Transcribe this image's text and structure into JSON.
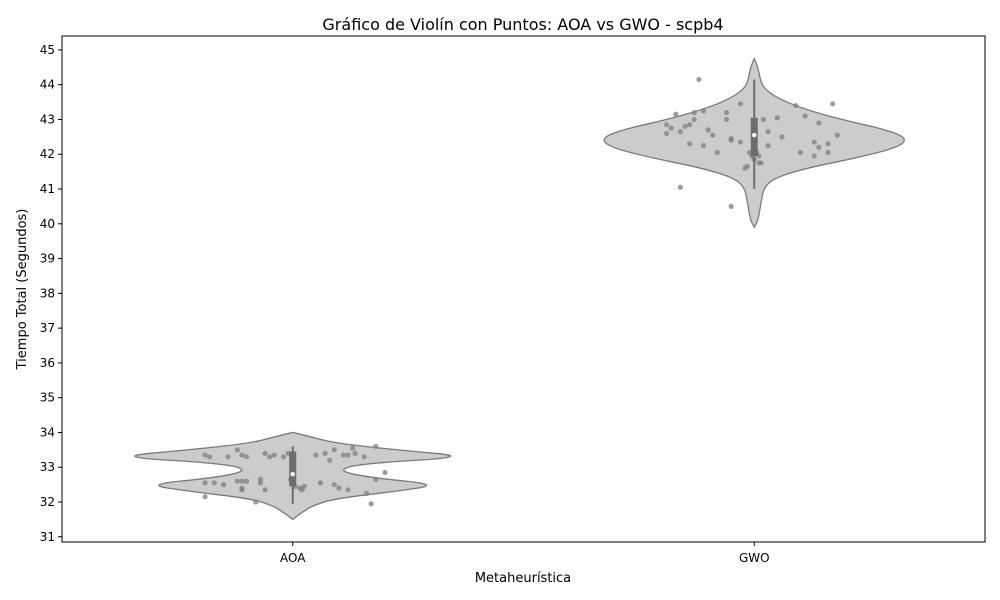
{
  "chart_data": {
    "type": "violin",
    "title": "Gráfico de Violín con Puntos: AOA vs GWO - scpb4",
    "xlabel": "Metaheurística",
    "ylabel": "Tiempo Total (Segundos)",
    "categories": [
      "AOA",
      "GWO"
    ],
    "ylim": [
      30.85,
      45.4
    ],
    "yticks": [
      31,
      32,
      33,
      34,
      35,
      36,
      37,
      38,
      39,
      40,
      41,
      42,
      43,
      44,
      45
    ],
    "grid": false,
    "colors": {
      "violin_fill": "#cccccc",
      "violin_edge": "#7a7a7a",
      "points": "#7f7f7f",
      "box": "#6d6d6d",
      "median": "#ffffff"
    },
    "series": [
      {
        "category": "AOA",
        "box": {
          "q1": 32.45,
          "median": 32.8,
          "q3": 33.45,
          "whisker_low": 31.95,
          "whisker_high": 33.6
        },
        "violin": [
          [
            31.5,
            0.0
          ],
          [
            31.7,
            0.05
          ],
          [
            31.9,
            0.11
          ],
          [
            32.1,
            0.23
          ],
          [
            32.3,
            0.55
          ],
          [
            32.5,
            0.8
          ],
          [
            32.7,
            0.42
          ],
          [
            32.9,
            0.24
          ],
          [
            33.1,
            0.36
          ],
          [
            33.3,
            0.98
          ],
          [
            33.5,
            0.56
          ],
          [
            33.7,
            0.22
          ],
          [
            33.9,
            0.08
          ],
          [
            34.0,
            0.0
          ]
        ],
        "points": [
          [
            -0.19,
            33.35
          ],
          [
            -0.18,
            33.3
          ],
          [
            -0.14,
            33.3
          ],
          [
            -0.12,
            33.5
          ],
          [
            -0.11,
            33.35
          ],
          [
            -0.1,
            33.3
          ],
          [
            -0.06,
            33.4
          ],
          [
            -0.05,
            33.3
          ],
          [
            -0.04,
            33.35
          ],
          [
            -0.02,
            33.3
          ],
          [
            -0.01,
            33.4
          ],
          [
            0.0,
            33.35
          ],
          [
            0.05,
            33.35
          ],
          [
            0.07,
            33.4
          ],
          [
            0.08,
            33.2
          ],
          [
            0.09,
            33.5
          ],
          [
            0.11,
            33.35
          ],
          [
            0.12,
            33.35
          ],
          [
            0.13,
            33.55
          ],
          [
            0.135,
            33.4
          ],
          [
            0.155,
            33.3
          ],
          [
            0.18,
            33.6
          ],
          [
            0.2,
            32.85
          ],
          [
            0.18,
            32.65
          ],
          [
            -0.19,
            32.55
          ],
          [
            -0.17,
            32.55
          ],
          [
            -0.15,
            32.5
          ],
          [
            -0.12,
            32.6
          ],
          [
            -0.11,
            32.6
          ],
          [
            -0.1,
            32.6
          ],
          [
            -0.07,
            32.65
          ],
          [
            -0.07,
            32.55
          ],
          [
            -0.11,
            32.4
          ],
          [
            -0.11,
            32.35
          ],
          [
            -0.06,
            32.35
          ],
          [
            -0.005,
            32.65
          ],
          [
            0.0,
            32.55
          ],
          [
            0.005,
            32.45
          ],
          [
            0.015,
            32.4
          ],
          [
            0.02,
            32.35
          ],
          [
            0.025,
            32.45
          ],
          [
            0.06,
            32.55
          ],
          [
            0.09,
            32.5
          ],
          [
            0.1,
            32.4
          ],
          [
            0.12,
            32.35
          ],
          [
            0.16,
            32.25
          ],
          [
            -0.19,
            32.15
          ],
          [
            -0.08,
            32.0
          ],
          [
            0.17,
            31.95
          ]
        ]
      },
      {
        "category": "GWO",
        "box": {
          "q1": 41.95,
          "median": 42.55,
          "q3": 43.05,
          "whisker_low": 41.0,
          "whisker_high": 44.15
        },
        "violin": [
          [
            39.9,
            0.0
          ],
          [
            40.1,
            0.02
          ],
          [
            40.4,
            0.03
          ],
          [
            40.7,
            0.04
          ],
          [
            41.0,
            0.05
          ],
          [
            41.3,
            0.1
          ],
          [
            41.6,
            0.28
          ],
          [
            41.9,
            0.56
          ],
          [
            42.2,
            0.78
          ],
          [
            42.45,
            0.83
          ],
          [
            42.7,
            0.72
          ],
          [
            43.0,
            0.47
          ],
          [
            43.3,
            0.27
          ],
          [
            43.6,
            0.13
          ],
          [
            43.9,
            0.05
          ],
          [
            44.2,
            0.03
          ],
          [
            44.5,
            0.02
          ],
          [
            44.75,
            0.0
          ]
        ],
        "points": [
          [
            -0.12,
            44.15
          ],
          [
            -0.13,
            43.0
          ],
          [
            -0.14,
            42.85
          ],
          [
            -0.16,
            42.65
          ],
          [
            -0.1,
            42.7
          ],
          [
            -0.09,
            42.55
          ],
          [
            -0.06,
            43.0
          ],
          [
            -0.05,
            42.4
          ],
          [
            -0.03,
            43.45
          ],
          [
            0.02,
            43.0
          ],
          [
            0.03,
            42.65
          ],
          [
            0.06,
            42.5
          ],
          [
            0.05,
            43.05
          ],
          [
            0.09,
            43.4
          ],
          [
            0.11,
            43.1
          ],
          [
            0.14,
            42.9
          ],
          [
            0.17,
            43.45
          ],
          [
            0.18,
            42.55
          ],
          [
            0.13,
            42.35
          ],
          [
            0.14,
            42.2
          ],
          [
            0.16,
            42.3
          ],
          [
            0.16,
            42.05
          ],
          [
            0.1,
            42.05
          ],
          [
            0.13,
            41.95
          ],
          [
            -0.19,
            42.6
          ],
          [
            -0.19,
            42.85
          ],
          [
            -0.18,
            42.75
          ],
          [
            -0.17,
            43.15
          ],
          [
            -0.15,
            42.8
          ],
          [
            -0.14,
            42.3
          ],
          [
            -0.13,
            43.2
          ],
          [
            -0.11,
            43.25
          ],
          [
            -0.11,
            42.25
          ],
          [
            -0.08,
            42.05
          ],
          [
            -0.06,
            43.2
          ],
          [
            -0.05,
            42.45
          ],
          [
            -0.03,
            42.35
          ],
          [
            -0.01,
            42.05
          ],
          [
            0.005,
            42.05
          ],
          [
            0.01,
            41.95
          ],
          [
            0.0,
            41.85
          ],
          [
            -0.005,
            41.95
          ],
          [
            0.01,
            41.75
          ],
          [
            0.015,
            41.75
          ],
          [
            -0.015,
            41.65
          ],
          [
            -0.02,
            41.6
          ],
          [
            0.03,
            42.25
          ],
          [
            -0.16,
            41.05
          ],
          [
            -0.05,
            40.5
          ]
        ]
      }
    ]
  }
}
